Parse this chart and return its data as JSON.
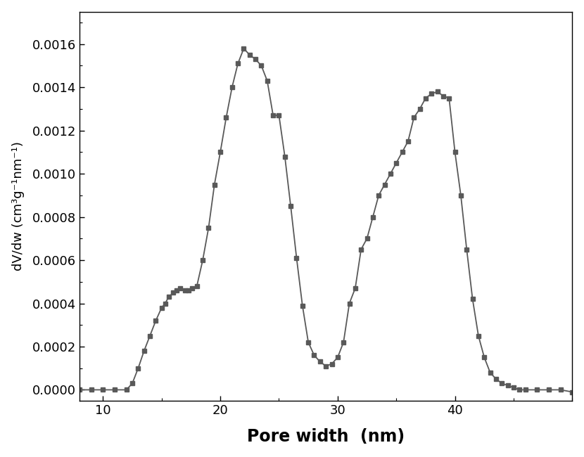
{
  "x": [
    8,
    9,
    10,
    11,
    12,
    12.5,
    13,
    13.5,
    14,
    14.5,
    15,
    15.3,
    15.6,
    16,
    16.3,
    16.6,
    17,
    17.3,
    17.6,
    18,
    18.5,
    19,
    19.5,
    20,
    20.5,
    21,
    21.5,
    22,
    22.5,
    23,
    23.5,
    24,
    24.5,
    25,
    25.5,
    26,
    26.5,
    27,
    27.5,
    28,
    28.5,
    29,
    29.5,
    30,
    30.5,
    31,
    31.5,
    32,
    32.5,
    33,
    33.5,
    34,
    34.5,
    35,
    35.5,
    36,
    36.5,
    37,
    37.5,
    38,
    38.5,
    39,
    39.5,
    40,
    40.5,
    41,
    41.5,
    42,
    42.5,
    43,
    43.5,
    44,
    44.5,
    45,
    45.5,
    46,
    47,
    48,
    49,
    50
  ],
  "y": [
    0.0,
    0.0,
    0.0,
    0.0,
    0.0,
    3e-05,
    0.0001,
    0.00018,
    0.00025,
    0.00032,
    0.00038,
    0.0004,
    0.00043,
    0.00045,
    0.00046,
    0.00047,
    0.00046,
    0.00046,
    0.00047,
    0.00048,
    0.0006,
    0.00075,
    0.00095,
    0.0011,
    0.00126,
    0.0014,
    0.00151,
    0.00158,
    0.00155,
    0.00153,
    0.0015,
    0.00143,
    0.00127,
    0.00127,
    0.00108,
    0.00085,
    0.00061,
    0.00039,
    0.00022,
    0.00016,
    0.00013,
    0.00011,
    0.00012,
    0.00015,
    0.00022,
    0.0004,
    0.00047,
    0.00065,
    0.0007,
    0.0008,
    0.0009,
    0.00095,
    0.001,
    0.00105,
    0.0011,
    0.00115,
    0.00126,
    0.0013,
    0.00135,
    0.00137,
    0.00138,
    0.00136,
    0.00135,
    0.0011,
    0.0009,
    0.00065,
    0.00042,
    0.00025,
    0.00015,
    8e-05,
    5e-05,
    3e-05,
    2e-05,
    1e-05,
    0.0,
    0.0,
    0.0,
    0.0,
    0.0,
    -1e-05
  ],
  "xlabel": "Pore width  (nm)",
  "ylabel": "dV/dw (cm³g⁻¹nm⁻¹)",
  "xlim": [
    8,
    50
  ],
  "ylim": [
    -5e-05,
    0.00175
  ],
  "xticks": [
    10,
    20,
    30,
    40
  ],
  "yticks": [
    0.0,
    0.0002,
    0.0004,
    0.0006,
    0.0008,
    0.001,
    0.0012,
    0.0014,
    0.0016
  ],
  "line_color": "#595959",
  "marker": "s",
  "marker_size": 4.5,
  "line_width": 1.3,
  "bg_color": "#ffffff",
  "xlabel_fontsize": 17,
  "ylabel_fontsize": 13,
  "tick_fontsize": 13,
  "xlabel_fontweight": "bold",
  "ylabel_fontweight": "normal"
}
